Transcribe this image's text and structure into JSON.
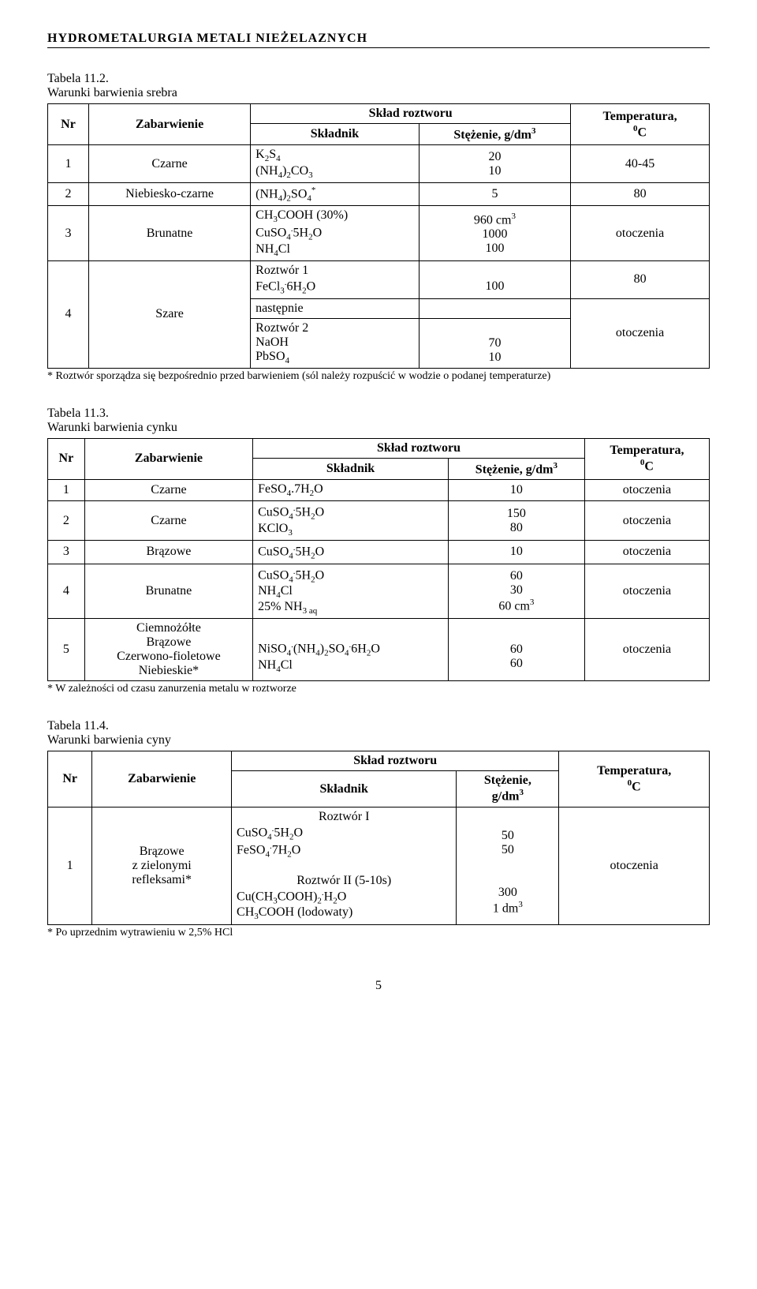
{
  "header": "HYDROMETALURGIA  METALI  NIEŻELAZNYCH",
  "table1": {
    "title_a": "Tabela 11.2.",
    "title_b": "Warunki barwienia srebra",
    "h_nr": "Nr",
    "h_zab": "Zabarwienie",
    "h_sklad": "Skład roztworu",
    "h_skln": "Składnik",
    "h_stez": "Stężenie, g/dm",
    "h_temp": "Temperatura,",
    "h_tempu": "C",
    "r1_nr": "1",
    "r1_z": "Czarne",
    "r1_s1": "K",
    "r1_s2": "(NH",
    "r1_s2b": "CO",
    "r1_c1": "20",
    "r1_c2": "10",
    "r1_t": "40-45",
    "r2_nr": "2",
    "r2_z": "Niebiesko-czarne",
    "r2_s": "(NH",
    "r2_sb": "SO",
    "r2_c": "5",
    "r2_t": "80",
    "r3_nr": "3",
    "r3_z": "Brunatne",
    "r3_s1": "CH",
    "r3_s1b": "COOH (30%)",
    "r3_s2": "CuSO",
    "r3_s2b": "5H",
    "r3_s2c": "O",
    "r3_s3": "NH",
    "r3_s3b": "Cl",
    "r3_c1": "960 cm",
    "r3_c2": "1000",
    "r3_c3": "100",
    "r3_t": "otoczenia",
    "r4_nr": "4",
    "r4_z": "Szare",
    "r4_s1": "Roztwór 1",
    "r4_s1b": "FeCl",
    "r4_s1c": "6H",
    "r4_s1d": "O",
    "r4_s2": "następnie",
    "r4_s3": "Roztwór 2",
    "r4_s3b": "NaOH",
    "r4_s3c": "PbSO",
    "r4_c1": "100",
    "r4_c3a": "70",
    "r4_c3b": "10",
    "r4_t1": "80",
    "r4_t2": "otoczenia",
    "note": "* Roztwór sporządza się bezpośrednio przed barwieniem (sól należy rozpuścić w wodzie o podanej temperaturze)"
  },
  "table2": {
    "title_a": "Tabela 11.3.",
    "title_b": "Warunki barwienia cynku",
    "h_nr": "Nr",
    "h_zab": "Zabarwienie",
    "h_sklad": "Skład roztworu",
    "h_skln": "Składnik",
    "h_stez": "Stężenie, g/dm",
    "h_temp": "Temperatura,",
    "h_tempu": "C",
    "r1_nr": "1",
    "r1_z": "Czarne",
    "r1_s": "FeSO",
    "r1_sb": ".7H",
    "r1_sc": "O",
    "r1_c": "10",
    "r1_t": "otoczenia",
    "r2_nr": "2",
    "r2_z": "Czarne",
    "r2_s1": "CuSO",
    "r2_s1b": "5H",
    "r2_s1c": "O",
    "r2_s2": "KClO",
    "r2_c1": "150",
    "r2_c2": "80",
    "r2_t": "otoczenia",
    "r3_nr": "3",
    "r3_z": "Brązowe",
    "r3_s": "CuSO",
    "r3_sb": "5H",
    "r3_sc": "O",
    "r3_c": "10",
    "r3_t": "otoczenia",
    "r4_nr": "4",
    "r4_z": "Brunatne",
    "r4_s1": "CuSO",
    "r4_s1b": "5H",
    "r4_s1c": "O",
    "r4_s2": "NH",
    "r4_s2b": "Cl",
    "r4_s3": "25% NH",
    "r4_c1": "60",
    "r4_c2": "30",
    "r4_c3": "60 cm",
    "r4_t": "otoczenia",
    "r5_nr": "5",
    "r5_z1": "Ciemnożółte",
    "r5_z2": "Brązowe",
    "r5_z3": "Czerwono-fioletowe",
    "r5_z4": "Niebieskie*",
    "r5_s1": "NiSO",
    "r5_s1b": "(NH",
    "r5_s1c": "SO",
    "r5_s1d": "6H",
    "r5_s1e": "O",
    "r5_s2": "NH",
    "r5_s2b": "Cl",
    "r5_c1": "60",
    "r5_c2": "60",
    "r5_t": "otoczenia",
    "note": "* W zależności od czasu zanurzenia metalu w roztworze"
  },
  "table3": {
    "title_a": "Tabela 11.4.",
    "title_b": "Warunki barwienia cyny",
    "h_nr": "Nr",
    "h_zab": "Zabarwienie",
    "h_sklad": "Skład roztworu",
    "h_skln": "Składnik",
    "h_stez": "Stężenie,",
    "h_stezu": "g/dm",
    "h_temp": "Temperatura,",
    "h_tempu": "C",
    "r1_nr": "1",
    "r1_z1": "Brązowe",
    "r1_z2": "z zielonymi",
    "r1_z3": "refleksami*",
    "r1_sR1": "Roztwór I",
    "r1_s1": "CuSO",
    "r1_s1b": "5H",
    "r1_s1c": "O",
    "r1_s2": "FeSO",
    "r1_s2b": "7H",
    "r1_s2c": "O",
    "r1_sR2": "Roztwór II (5-10s)",
    "r1_s3": "Cu(CH",
    "r1_s3b": "COOH)",
    "r1_s3c": "H",
    "r1_s3d": "O",
    "r1_s4": "CH",
    "r1_s4b": "COOH (lodowaty)",
    "r1_c1": "50",
    "r1_c2": "50",
    "r1_c3": "300",
    "r1_c4": "1 dm",
    "r1_t": "otoczenia",
    "note": "* Po uprzednim wytrawieniu w 2,5% HCl"
  },
  "pagenum": "5"
}
